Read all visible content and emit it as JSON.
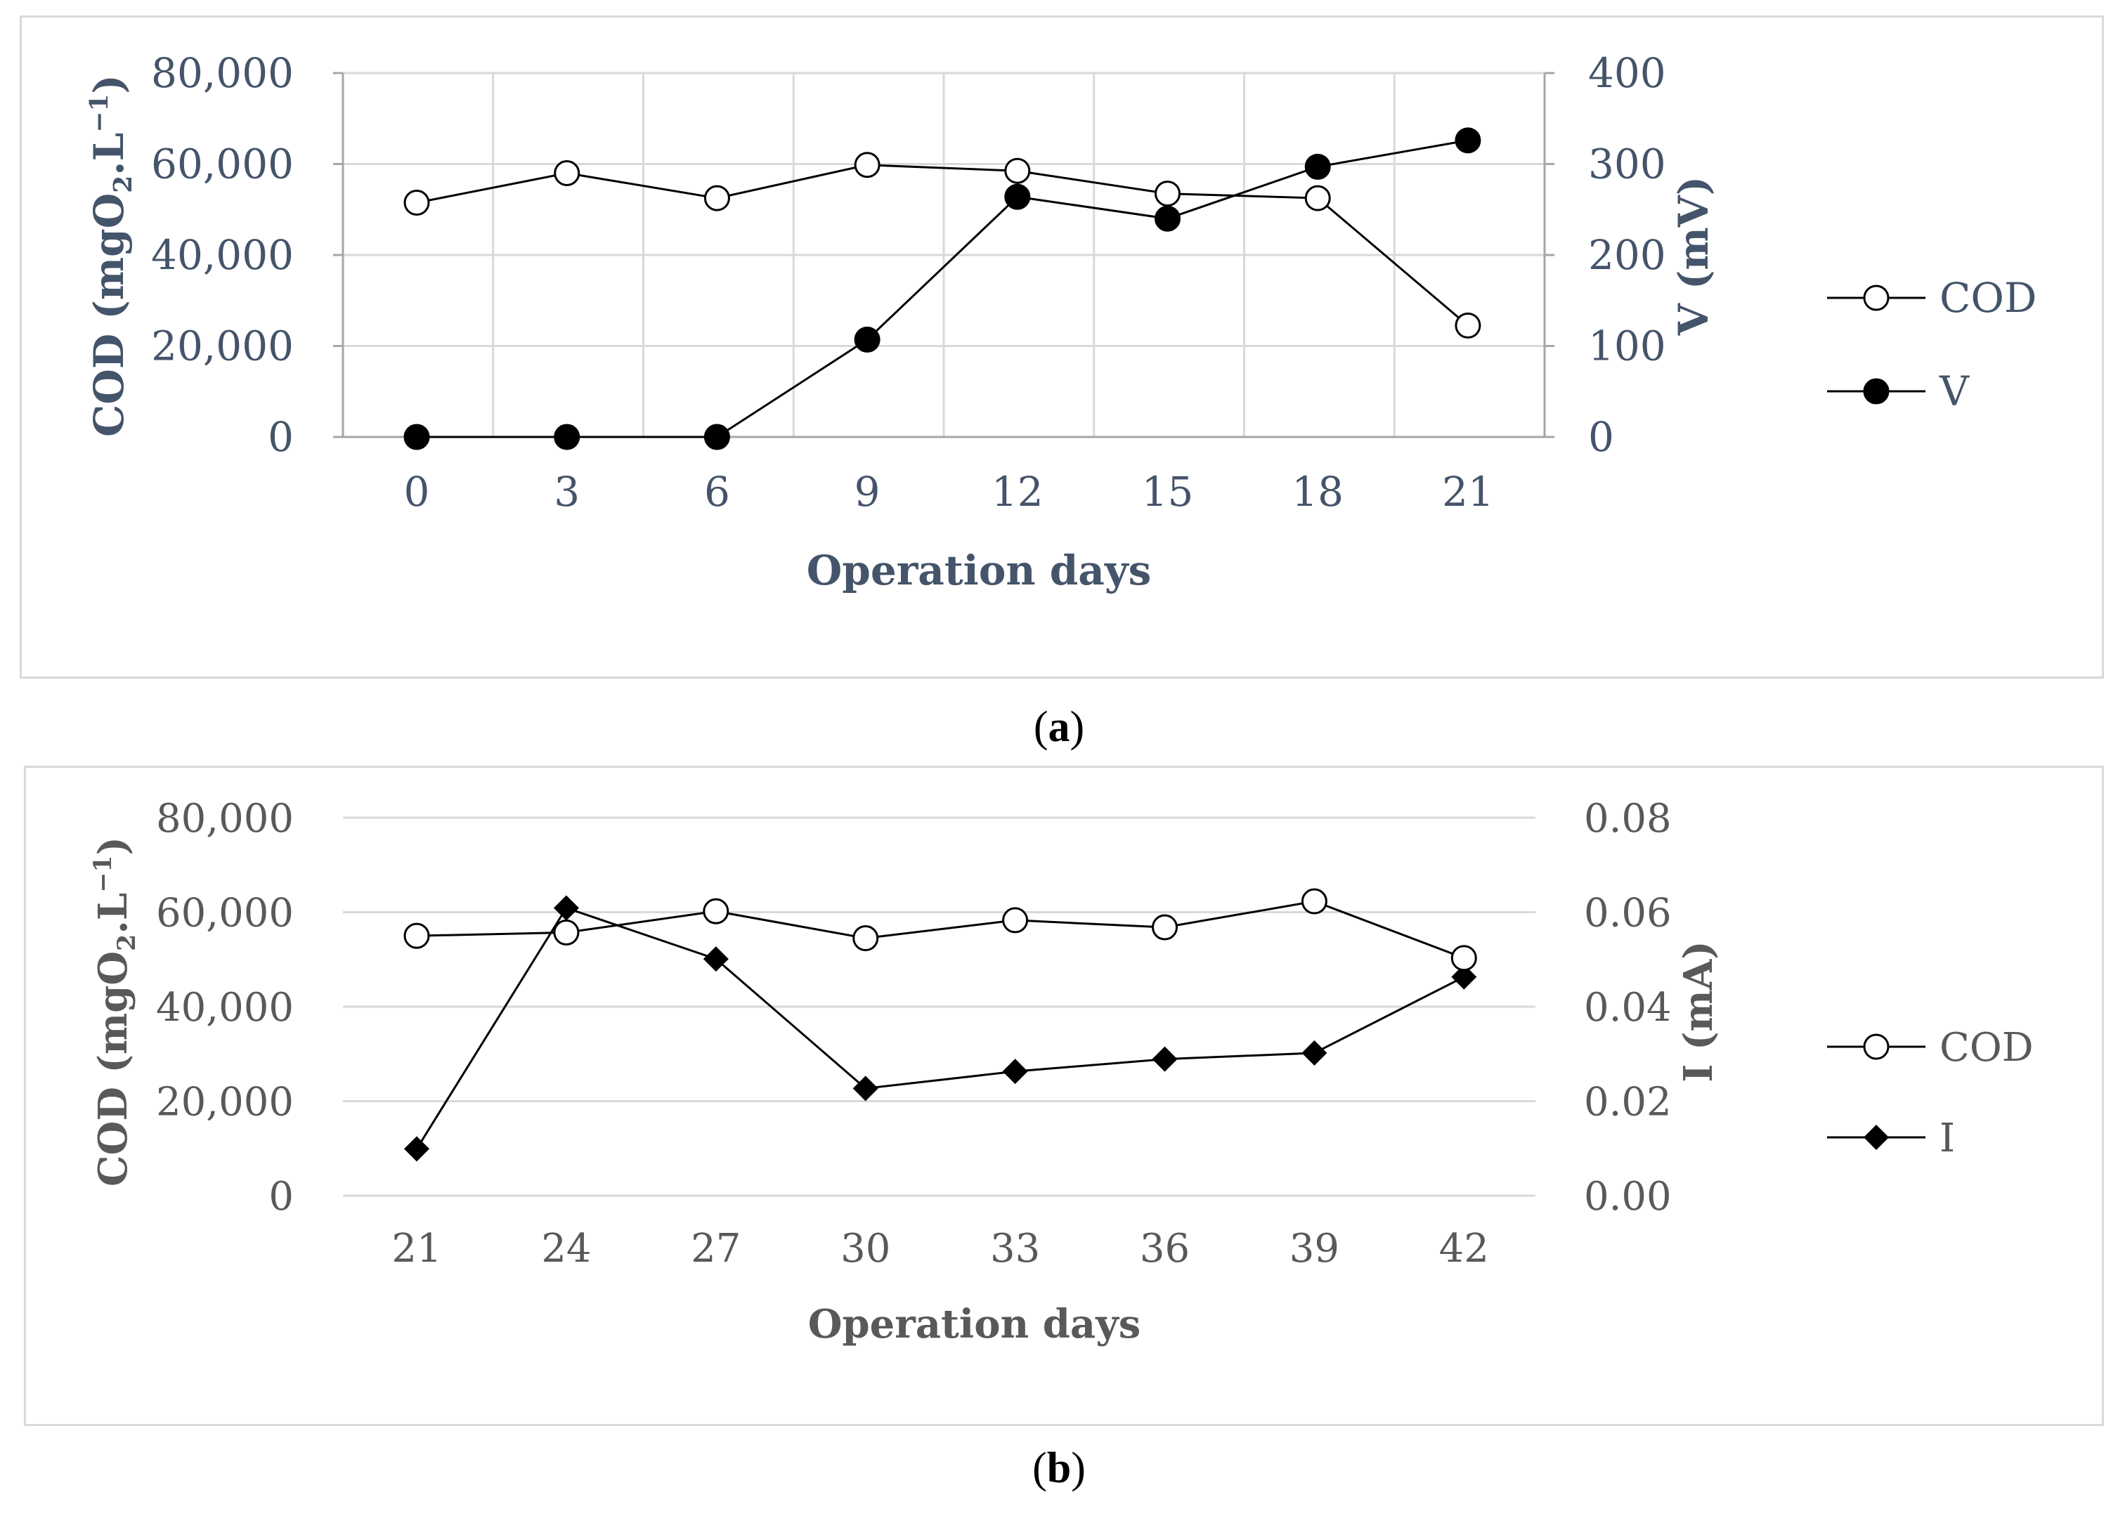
{
  "chart_data": [
    {
      "type": "line",
      "panel_label": "a",
      "colors": {
        "axis_text": "#44546a",
        "line": "#000000",
        "grid": "#d9d9d9"
      },
      "xlabel": "Operation days",
      "categories": [
        "0",
        "3",
        "6",
        "9",
        "12",
        "15",
        "18",
        "21"
      ],
      "y_left": {
        "label": "COD (mgO",
        "label_sub": "2",
        "label_mid": ".L",
        "label_sup": "−1",
        "label_end": ")",
        "ylim": [
          0,
          80000
        ],
        "ticks": [
          "0",
          "20,000",
          "40,000",
          "60,000",
          "80,000"
        ]
      },
      "y_right": {
        "label": "V (mV)",
        "ylim": [
          0,
          400
        ],
        "ticks": [
          "0",
          "100",
          "200",
          "300",
          "400"
        ]
      },
      "series": [
        {
          "name": "COD",
          "axis": "left",
          "marker": "open-circle",
          "values": [
            51500,
            58000,
            52500,
            59800,
            58500,
            53500,
            52500,
            24500
          ]
        },
        {
          "name": "V",
          "axis": "right",
          "marker": "filled-circle",
          "values": [
            0,
            0,
            0,
            107,
            264,
            240,
            297,
            326
          ]
        }
      ]
    },
    {
      "type": "line",
      "panel_label": "b",
      "colors": {
        "axis_text": "#595959",
        "line": "#000000",
        "grid": "#d9d9d9"
      },
      "xlabel": "Operation days",
      "categories": [
        "21",
        "24",
        "27",
        "30",
        "33",
        "36",
        "39",
        "42"
      ],
      "y_left": {
        "label": "COD (mgO",
        "label_sub": "2",
        "label_mid": ".L",
        "label_sup": "−1",
        "label_end": ")",
        "ylim": [
          0,
          80000
        ],
        "ticks": [
          "0",
          "20,000",
          "40,000",
          "60,000",
          "80,000"
        ]
      },
      "y_right": {
        "label": "I (mA)",
        "ylim": [
          0,
          0.08
        ],
        "ticks": [
          "0.00",
          "0.02",
          "0.04",
          "0.06",
          "0.08"
        ]
      },
      "series": [
        {
          "name": "COD",
          "axis": "left",
          "marker": "open-circle",
          "values": [
            55000,
            55700,
            60200,
            54500,
            58300,
            56800,
            62300,
            50300
          ]
        },
        {
          "name": "I",
          "axis": "right",
          "marker": "filled-diamond",
          "values": [
            0.0099,
            0.0609,
            0.0501,
            0.0227,
            0.0263,
            0.0289,
            0.0302,
            0.0463
          ]
        }
      ]
    }
  ]
}
